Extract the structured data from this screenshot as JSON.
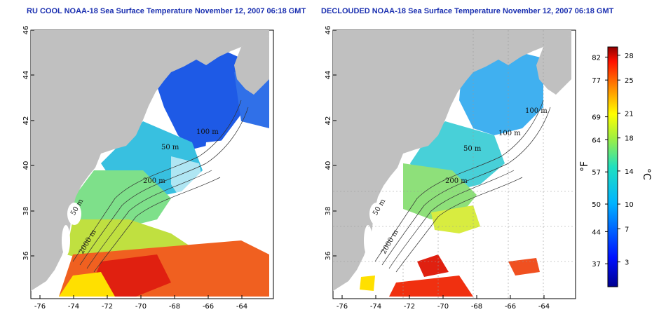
{
  "panels": [
    {
      "id": "left",
      "title": "RU COOL NOAA-18 Sea Surface Temperature November 12, 2007 06:18 GMT",
      "lat_ticks": [
        "46",
        "44",
        "42",
        "40",
        "38",
        "36"
      ],
      "lon_ticks": [
        "-76",
        "-74",
        "-72",
        "-70",
        "-68",
        "-66",
        "-64"
      ],
      "contour_labels": [
        "100 m",
        "50 m",
        "200 m",
        "50 m",
        "2000 m"
      ]
    },
    {
      "id": "right",
      "title": "DECLOUDED NOAA-18 Sea Surface Temperature November 12, 2007 06:18 GMT",
      "lat_ticks": [
        "46",
        "44",
        "42",
        "40",
        "38",
        "36"
      ],
      "lon_ticks": [
        "-76",
        "-74",
        "-72",
        "-70",
        "-68",
        "-66",
        "-64"
      ],
      "contour_labels": [
        "100 m",
        "100 m",
        "50 m",
        "200 m",
        "50 m",
        "2000 m"
      ]
    }
  ],
  "colorbar": {
    "fahrenheit_ticks": [
      "82",
      "77",
      "69",
      "64",
      "57",
      "50",
      "44",
      "37"
    ],
    "celsius_ticks": [
      "28",
      "25",
      "21",
      "18",
      "14",
      "10",
      "7",
      "3"
    ],
    "fahrenheit_unit": "°F",
    "celsius_unit": "°C",
    "range_celsius": [
      0,
      29
    ]
  },
  "colors": {
    "land": "#c0c0c0",
    "title": "#1a2fb0"
  }
}
